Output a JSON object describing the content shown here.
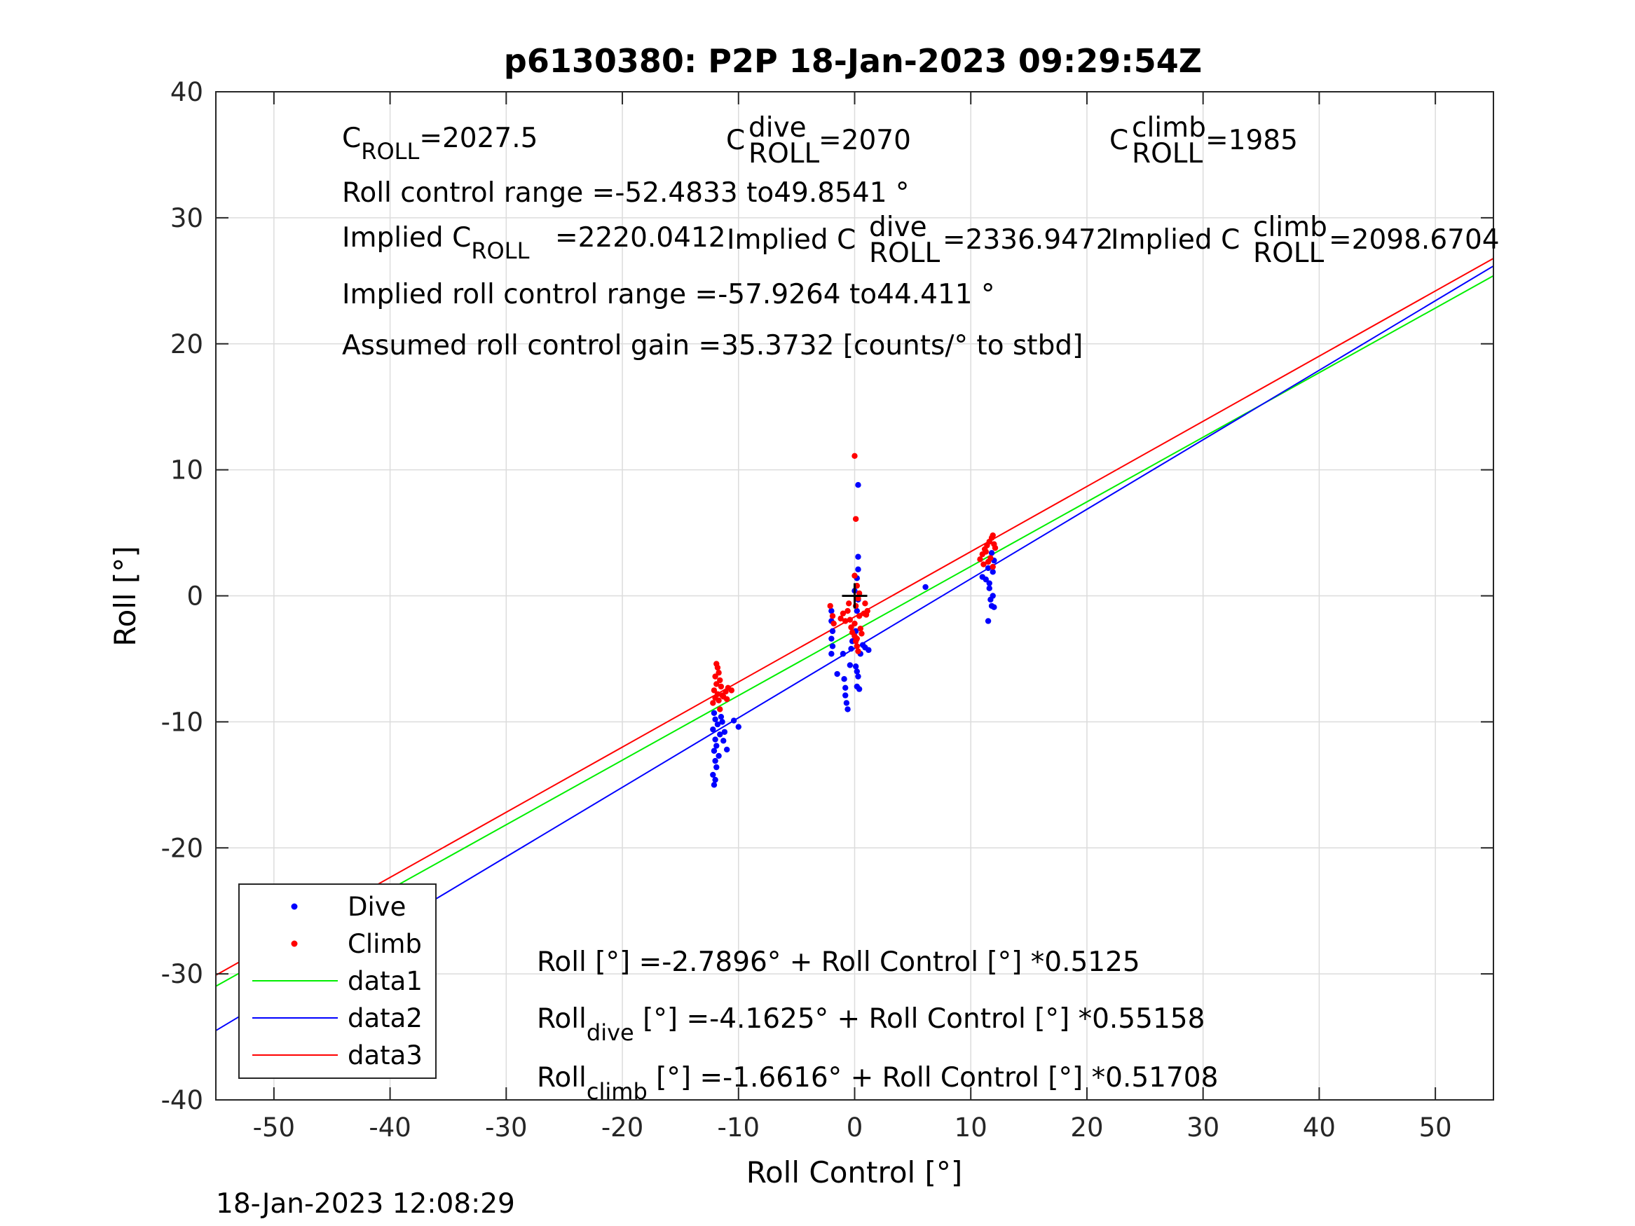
{
  "chart_data": {
    "type": "scatter",
    "title": "p6130380: P2P 18-Jan-2023 09:29:54Z",
    "xlabel": "Roll Control [°]",
    "ylabel": "Roll [°]",
    "xlim": [
      -55,
      55
    ],
    "ylim": [
      -40,
      40
    ],
    "xticks": [
      -50,
      -40,
      -30,
      -20,
      -10,
      0,
      10,
      20,
      30,
      40,
      50
    ],
    "yticks": [
      -40,
      -30,
      -20,
      -10,
      0,
      10,
      20,
      30,
      40
    ],
    "grid": true,
    "legend_position": "bottom-left",
    "timestamp": "18-Jan-2023 12:08:29",
    "colors": {
      "dive": "#0000ff",
      "climb": "#ff0000",
      "data1": "#00ee00",
      "data2": "#0000ff",
      "data3": "#ff0000",
      "marker": "#000000"
    },
    "legend": [
      {
        "label": "Dive",
        "kind": "marker",
        "color": "#0000ff"
      },
      {
        "label": "Climb",
        "kind": "marker",
        "color": "#ff0000"
      },
      {
        "label": "data1",
        "kind": "line",
        "color": "#00ee00"
      },
      {
        "label": "data2",
        "kind": "line",
        "color": "#0000ff"
      },
      {
        "label": "data3",
        "kind": "line",
        "color": "#ff0000"
      }
    ],
    "series": [
      {
        "name": "Dive",
        "kind": "scatter",
        "color": "#0000ff",
        "points": [
          [
            -12.1,
            -9.3
          ],
          [
            -12.0,
            -9.8
          ],
          [
            -11.8,
            -10.2
          ],
          [
            -12.2,
            -10.6
          ],
          [
            -11.6,
            -11.0
          ],
          [
            -12.0,
            -11.4
          ],
          [
            -11.9,
            -11.9
          ],
          [
            -12.1,
            -12.3
          ],
          [
            -11.7,
            -12.7
          ],
          [
            -12.0,
            -13.1
          ],
          [
            -11.9,
            -13.6
          ],
          [
            -12.2,
            -14.2
          ],
          [
            -12.0,
            -14.6
          ],
          [
            -12.1,
            -15.0
          ],
          [
            -11.4,
            -10.0
          ],
          [
            -11.2,
            -10.8
          ],
          [
            -11.0,
            -12.2
          ],
          [
            -10.4,
            -9.9
          ],
          [
            -10.0,
            -10.4
          ],
          [
            -11.5,
            -9.6
          ],
          [
            -11.3,
            -11.5
          ],
          [
            -2.0,
            -1.2
          ],
          [
            -2.0,
            -2.0
          ],
          [
            -1.9,
            -2.8
          ],
          [
            -2.0,
            -3.4
          ],
          [
            -1.9,
            -4.0
          ],
          [
            -2.0,
            -4.6
          ],
          [
            -1.5,
            -6.2
          ],
          [
            -1.0,
            -4.6
          ],
          [
            -0.9,
            -6.6
          ],
          [
            -0.8,
            -7.3
          ],
          [
            -0.8,
            -7.9
          ],
          [
            -0.7,
            -8.5
          ],
          [
            -0.6,
            -9.0
          ],
          [
            -0.4,
            -5.5
          ],
          [
            -0.3,
            -4.2
          ],
          [
            -0.2,
            -3.6
          ],
          [
            0.0,
            -3.2
          ],
          [
            0.1,
            -2.8
          ],
          [
            0.2,
            -1.2
          ],
          [
            0.3,
            -0.3
          ],
          [
            0.0,
            0.4
          ],
          [
            0.2,
            1.4
          ],
          [
            0.3,
            2.1
          ],
          [
            0.3,
            3.1
          ],
          [
            0.3,
            8.8
          ],
          [
            0.1,
            -5.6
          ],
          [
            0.2,
            -6.0
          ],
          [
            0.3,
            -6.4
          ],
          [
            0.2,
            -7.2
          ],
          [
            0.4,
            -7.4
          ],
          [
            0.5,
            -4.6
          ],
          [
            0.7,
            -3.9
          ],
          [
            1.2,
            -4.3
          ],
          [
            0.9,
            -4.1
          ],
          [
            6.1,
            0.7
          ],
          [
            11.0,
            1.5
          ],
          [
            11.3,
            1.3
          ],
          [
            11.5,
            2.2
          ],
          [
            11.6,
            0.6
          ],
          [
            11.7,
            -0.3
          ],
          [
            11.8,
            -0.8
          ],
          [
            11.9,
            0.0
          ],
          [
            12.0,
            -0.9
          ],
          [
            11.5,
            -2.0
          ],
          [
            11.9,
            1.9
          ],
          [
            12.0,
            2.8
          ],
          [
            11.8,
            3.4
          ],
          [
            11.6,
            1.0
          ]
        ]
      },
      {
        "name": "Climb",
        "kind": "scatter",
        "color": "#ff0000",
        "points": [
          [
            -11.9,
            -5.4
          ],
          [
            -11.8,
            -5.7
          ],
          [
            -11.7,
            -6.1
          ],
          [
            -12.0,
            -6.4
          ],
          [
            -11.6,
            -6.7
          ],
          [
            -11.9,
            -7.0
          ],
          [
            -11.5,
            -7.2
          ],
          [
            -12.1,
            -7.5
          ],
          [
            -11.8,
            -7.8
          ],
          [
            -11.4,
            -7.9
          ],
          [
            -12.0,
            -8.1
          ],
          [
            -11.7,
            -8.3
          ],
          [
            -12.2,
            -8.5
          ],
          [
            -11.3,
            -8.0
          ],
          [
            -11.1,
            -7.6
          ],
          [
            -10.9,
            -7.3
          ],
          [
            -10.6,
            -7.5
          ],
          [
            -11.0,
            -8.2
          ],
          [
            -11.6,
            -9.0
          ],
          [
            -2.1,
            -0.8
          ],
          [
            -1.9,
            -1.6
          ],
          [
            -1.8,
            -2.2
          ],
          [
            -1.2,
            -1.8
          ],
          [
            -1.0,
            -1.4
          ],
          [
            -0.8,
            -2.0
          ],
          [
            -0.6,
            -1.2
          ],
          [
            -0.5,
            -0.6
          ],
          [
            -0.4,
            -1.9
          ],
          [
            -0.3,
            -2.5
          ],
          [
            -0.2,
            -2.9
          ],
          [
            0.0,
            -3.2
          ],
          [
            0.1,
            -3.6
          ],
          [
            0.2,
            -4.0
          ],
          [
            0.2,
            -3.4
          ],
          [
            0.0,
            -2.2
          ],
          [
            0.1,
            -0.8
          ],
          [
            0.3,
            -0.2
          ],
          [
            0.4,
            0.2
          ],
          [
            0.2,
            0.8
          ],
          [
            0.0,
            1.6
          ],
          [
            0.1,
            6.1
          ],
          [
            0.0,
            11.1
          ],
          [
            0.4,
            -1.6
          ],
          [
            0.5,
            -2.6
          ],
          [
            0.6,
            -3.0
          ],
          [
            0.8,
            -1.4
          ],
          [
            0.9,
            -0.6
          ],
          [
            1.0,
            -1.5
          ],
          [
            1.1,
            -1.2
          ],
          [
            0.3,
            -4.4
          ],
          [
            10.8,
            2.9
          ],
          [
            11.0,
            3.3
          ],
          [
            11.2,
            3.7
          ],
          [
            11.4,
            4.0
          ],
          [
            11.3,
            3.5
          ],
          [
            11.6,
            4.3
          ],
          [
            11.8,
            4.6
          ],
          [
            11.9,
            4.8
          ],
          [
            11.7,
            3.0
          ],
          [
            12.0,
            4.1
          ],
          [
            11.5,
            2.7
          ],
          [
            11.1,
            2.5
          ],
          [
            11.9,
            2.3
          ],
          [
            12.1,
            3.8
          ]
        ]
      },
      {
        "name": "data1",
        "kind": "line",
        "color": "#00ee00",
        "x": [
          -55,
          55
        ],
        "y": [
          -30.977,
          25.398
        ]
      },
      {
        "name": "data2",
        "kind": "line",
        "color": "#0000ff",
        "x": [
          -55,
          55
        ],
        "y": [
          -34.499,
          26.174
        ]
      },
      {
        "name": "data3",
        "kind": "line",
        "color": "#ff0000",
        "x": [
          -55,
          55
        ],
        "y": [
          -30.101,
          26.778
        ]
      }
    ],
    "reference_marker": {
      "x": 0,
      "y": 0,
      "color": "#000000"
    },
    "annotations_top": {
      "c_roll": {
        "base": "C",
        "sub": "ROLL",
        "value": "=2027.5"
      },
      "c_roll_dive": {
        "base": "C",
        "sup": "dive",
        "sub": "ROLL",
        "value": "=2070"
      },
      "c_roll_climb": {
        "base": "C",
        "sup": "climb",
        "sub": "ROLL",
        "value": "=1985"
      },
      "roll_control_range": "Roll control range =-52.4833 to49.8541 °",
      "implied_c_roll": {
        "prefix": "Implied C",
        "sub": "ROLL",
        "value": "=2220.0412"
      },
      "implied_c_roll_dive": {
        "prefix": "Implied C",
        "sup": "dive",
        "sub": "ROLL",
        "value": "=2336.9472"
      },
      "implied_c_roll_climb": {
        "prefix": "Implied C",
        "sup": "climb",
        "sub": "ROLL",
        "value": "=2098.6704"
      },
      "implied_range": "Implied roll control range =-57.9264 to44.411 °",
      "assumed_gain": "Assumed roll control gain =35.3732 [counts/° to stbd]"
    },
    "annotations_bottom": {
      "fit_all": "Roll [°] =-2.7896° + Roll Control [°] *0.5125",
      "fit_dive": {
        "base": "Roll",
        "sub": "dive",
        "rest": " [°] =-4.1625° + Roll Control [°] *0.55158"
      },
      "fit_climb": {
        "base": "Roll",
        "sub": "climb",
        "rest": " [°] =-1.6616° + Roll Control [°] *0.51708"
      }
    }
  }
}
